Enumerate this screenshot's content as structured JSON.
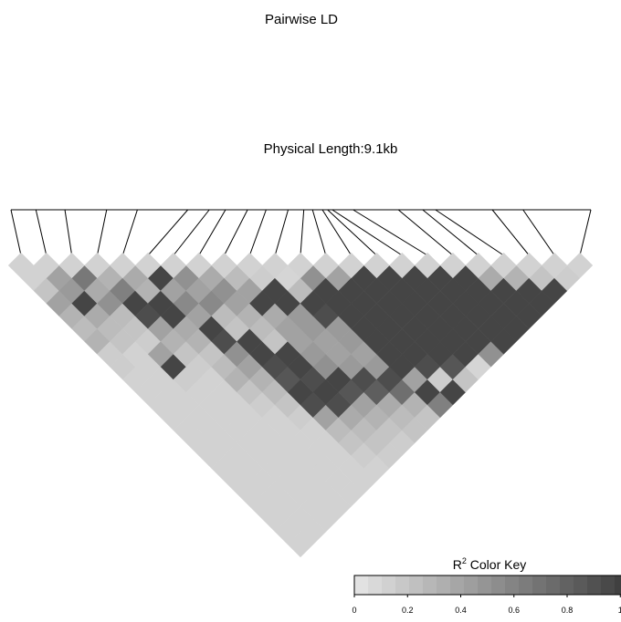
{
  "chart_data": {
    "type": "heatmap",
    "title": "Pairwise LD",
    "subtitle": "Physical Length:9.1kb",
    "n_snps": 23,
    "snp_positions": [
      0.0,
      0.043,
      0.093,
      0.165,
      0.218,
      0.305,
      0.342,
      0.37,
      0.408,
      0.44,
      0.478,
      0.505,
      0.52,
      0.537,
      0.546,
      0.554,
      0.59,
      0.668,
      0.71,
      0.732,
      0.83,
      0.883,
      1.0
    ],
    "ld_r2": [
      [
        0.12,
        0.2,
        0.4,
        0.3,
        0.25,
        0.3,
        0.15,
        0.15,
        0.12,
        0.12,
        0.12,
        0.12,
        0.12,
        0.12,
        0.12,
        0.12,
        0.12,
        0.12,
        0.12,
        0.12,
        0.12,
        0.12
      ],
      [
        0.4,
        0.45,
        0.95,
        0.35,
        0.25,
        0.2,
        0.12,
        0.12,
        0.12,
        0.12,
        0.12,
        0.12,
        0.12,
        0.12,
        0.12,
        0.12,
        0.12,
        0.12,
        0.12,
        0.12,
        0.12
      ],
      [
        0.65,
        0.35,
        0.5,
        0.25,
        0.2,
        0.15,
        0.4,
        0.95,
        0.15,
        0.12,
        0.12,
        0.12,
        0.12,
        0.12,
        0.12,
        0.12,
        0.12,
        0.12,
        0.12,
        0.12
      ],
      [
        0.3,
        0.6,
        0.95,
        0.9,
        0.4,
        0.3,
        0.2,
        0.15,
        0.12,
        0.12,
        0.12,
        0.12,
        0.12,
        0.12,
        0.12,
        0.12,
        0.12,
        0.12,
        0.12
      ],
      [
        0.35,
        0.3,
        0.95,
        0.95,
        0.35,
        0.3,
        0.2,
        0.25,
        0.3,
        0.2,
        0.15,
        0.12,
        0.12,
        0.12,
        0.12,
        0.12,
        0.12,
        0.12
      ],
      [
        0.95,
        0.4,
        0.55,
        0.4,
        0.95,
        0.9,
        0.5,
        0.4,
        0.3,
        0.25,
        0.2,
        0.15,
        0.12,
        0.12,
        0.12,
        0.12,
        0.12
      ],
      [
        0.5,
        0.4,
        0.55,
        0.25,
        0.2,
        0.95,
        0.95,
        0.9,
        0.85,
        0.95,
        0.9,
        0.4,
        0.25,
        0.2,
        0.15,
        0.12
      ],
      [
        0.35,
        0.5,
        0.4,
        0.3,
        0.25,
        0.2,
        0.95,
        0.95,
        0.9,
        0.95,
        0.9,
        0.35,
        0.25,
        0.2,
        0.15
      ],
      [
        0.25,
        0.4,
        0.95,
        0.35,
        0.4,
        0.4,
        0.45,
        0.5,
        0.95,
        0.85,
        0.4,
        0.3,
        0.2,
        0.15
      ],
      [
        0.15,
        0.95,
        0.95,
        0.45,
        0.45,
        0.4,
        0.4,
        0.45,
        0.9,
        0.8,
        0.35,
        0.25,
        0.2
      ],
      [
        0.1,
        0.25,
        0.95,
        0.9,
        0.45,
        0.45,
        0.4,
        0.45,
        0.9,
        0.7,
        0.3,
        0.2
      ],
      [
        0.5,
        0.95,
        0.95,
        0.95,
        0.95,
        0.95,
        0.95,
        0.95,
        0.4,
        0.95,
        0.6
      ],
      [
        0.4,
        0.95,
        0.95,
        0.95,
        0.95,
        0.95,
        0.95,
        0.9,
        0.15,
        0.95
      ],
      [
        0.95,
        0.95,
        0.95,
        0.95,
        0.95,
        0.95,
        0.95,
        0.85,
        0.2
      ],
      [
        0.95,
        0.95,
        0.95,
        0.95,
        0.95,
        0.95,
        0.95,
        0.1
      ],
      [
        0.95,
        0.95,
        0.95,
        0.95,
        0.95,
        0.95,
        0.5
      ],
      [
        0.95,
        0.95,
        0.95,
        0.95,
        0.95,
        0.95
      ],
      [
        0.95,
        0.95,
        0.95,
        0.95,
        0.95
      ],
      [
        0.35,
        0.95,
        0.95,
        0.95
      ],
      [
        0.3,
        0.95,
        0.95
      ],
      [
        0.2,
        0.95
      ],
      [
        0.15
      ]
    ],
    "legend": {
      "title_main": "R",
      "title_sup": "2",
      "title_rest": " Color Key",
      "n_bins": 20,
      "ticks": [
        0,
        0.2,
        0.4,
        0.6,
        0.8,
        1
      ],
      "tick_labels": [
        "0",
        "0.2",
        "0.4",
        "0.6",
        "0.8",
        "1"
      ],
      "placement": "bottom-right"
    },
    "colors": {
      "low": "#e6e6e6",
      "high": "#3c3c3c",
      "line": "#000000"
    }
  }
}
